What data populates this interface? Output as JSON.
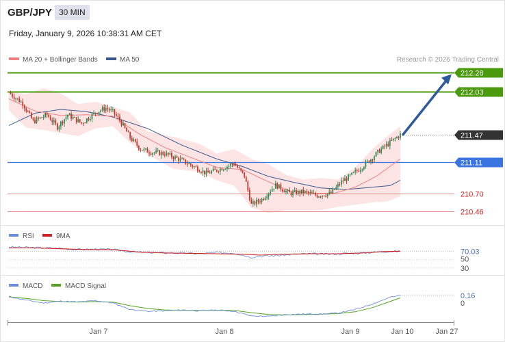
{
  "header": {
    "symbol": "GBP/JPY",
    "timeframe": "30 MIN",
    "datetime": "Friday, January 9, 2026 10:38:31 AM CET"
  },
  "legend": {
    "ma20": "MA 20 + Bollinger Bands",
    "ma50": "MA 50",
    "credit": "Research © 2026 Trading Central"
  },
  "colors": {
    "ma20": "#f08080",
    "ma50": "#3a5a8c",
    "band_fill": "#fde4e4",
    "resistance": "#4a9a0c",
    "pivot": "#3a74e0",
    "support": "#e08a8a",
    "current": "#333333",
    "candle_up": "#2e8b57",
    "candle_down": "#c0392b",
    "arrow": "#2d5a9c",
    "rsi": "#6a8ddc",
    "rsi_ma": "#cc2222",
    "macd": "#6a8ddc",
    "macd_signal": "#55a322"
  },
  "levels": [
    {
      "label": "212.28",
      "kind": "resistance"
    },
    {
      "label": "212.03",
      "kind": "resistance"
    },
    {
      "label": "211.47",
      "kind": "current"
    },
    {
      "label": "211.11",
      "kind": "pivot"
    },
    {
      "label": "210.70",
      "kind": "support"
    },
    {
      "label": "210.46",
      "kind": "support"
    }
  ],
  "rsi_panel": {
    "legend_rsi": "RSI",
    "legend_ma": "9MA",
    "value_label": "70.03",
    "level_50": "50",
    "level_30": "30"
  },
  "macd_panel": {
    "legend_macd": "MACD",
    "legend_signal": "MACD Signal",
    "value_label": "0.16",
    "zero_label": "0"
  },
  "x_axis": {
    "labels": [
      "Jan 7",
      "Jan 8",
      "Jan 9",
      "Jan 10",
      "Jan 27"
    ]
  },
  "chart_data": {
    "type": "candlestick",
    "instrument": "GBP/JPY",
    "interval": "30 MIN",
    "y_range": [
      210.31,
      212.41
    ],
    "price_path": [
      [
        0,
        212.02
      ],
      [
        8,
        211.88
      ],
      [
        14,
        211.64
      ],
      [
        22,
        211.73
      ],
      [
        28,
        211.57
      ],
      [
        34,
        211.73
      ],
      [
        42,
        211.62
      ],
      [
        50,
        211.76
      ],
      [
        56,
        211.82
      ],
      [
        60,
        211.77
      ],
      [
        64,
        211.66
      ],
      [
        70,
        211.43
      ],
      [
        76,
        211.28
      ],
      [
        82,
        211.24
      ],
      [
        90,
        211.22
      ],
      [
        98,
        211.15
      ],
      [
        106,
        211.06
      ],
      [
        114,
        210.96
      ],
      [
        122,
        211.02
      ],
      [
        130,
        211.09
      ],
      [
        136,
        210.93
      ],
      [
        140,
        210.55
      ],
      [
        146,
        210.62
      ],
      [
        154,
        210.81
      ],
      [
        162,
        210.7
      ],
      [
        170,
        210.72
      ],
      [
        178,
        210.67
      ],
      [
        186,
        210.7
      ],
      [
        192,
        210.85
      ],
      [
        198,
        210.94
      ],
      [
        204,
        211.05
      ],
      [
        210,
        211.17
      ],
      [
        214,
        211.26
      ],
      [
        218,
        211.33
      ],
      [
        222,
        211.4
      ],
      [
        226,
        211.47
      ]
    ],
    "ma20": [
      [
        0,
        211.94
      ],
      [
        15,
        211.78
      ],
      [
        30,
        211.72
      ],
      [
        45,
        211.73
      ],
      [
        60,
        211.71
      ],
      [
        75,
        211.48
      ],
      [
        90,
        211.3
      ],
      [
        105,
        211.17
      ],
      [
        120,
        211.04
      ],
      [
        135,
        211.01
      ],
      [
        148,
        210.87
      ],
      [
        162,
        210.73
      ],
      [
        175,
        210.7
      ],
      [
        188,
        210.7
      ],
      [
        200,
        210.78
      ],
      [
        212,
        210.92
      ],
      [
        226,
        211.15
      ]
    ],
    "ma50": [
      [
        0,
        211.59
      ],
      [
        15,
        211.75
      ],
      [
        30,
        211.8
      ],
      [
        45,
        211.77
      ],
      [
        60,
        211.7
      ],
      [
        80,
        211.55
      ],
      [
        100,
        211.33
      ],
      [
        120,
        211.15
      ],
      [
        135,
        211.05
      ],
      [
        150,
        210.92
      ],
      [
        165,
        210.84
      ],
      [
        180,
        210.77
      ],
      [
        195,
        210.75
      ],
      [
        210,
        210.78
      ],
      [
        220,
        210.8
      ],
      [
        226,
        210.87
      ]
    ],
    "bb_upper": [
      [
        0,
        212.04
      ],
      [
        10,
        212.0
      ],
      [
        20,
        212.08
      ],
      [
        30,
        212.01
      ],
      [
        40,
        211.87
      ],
      [
        50,
        211.9
      ],
      [
        60,
        211.83
      ],
      [
        70,
        211.76
      ],
      [
        80,
        211.51
      ],
      [
        95,
        211.44
      ],
      [
        110,
        211.35
      ],
      [
        120,
        211.22
      ],
      [
        130,
        211.28
      ],
      [
        140,
        211.15
      ],
      [
        150,
        211.08
      ],
      [
        160,
        210.94
      ],
      [
        170,
        210.88
      ],
      [
        180,
        210.9
      ],
      [
        190,
        210.88
      ],
      [
        200,
        211.04
      ],
      [
        210,
        211.28
      ],
      [
        218,
        211.44
      ],
      [
        226,
        211.58
      ]
    ],
    "bb_lower": [
      [
        0,
        211.79
      ],
      [
        10,
        211.56
      ],
      [
        20,
        211.53
      ],
      [
        30,
        211.49
      ],
      [
        40,
        211.45
      ],
      [
        50,
        211.55
      ],
      [
        60,
        211.58
      ],
      [
        70,
        211.36
      ],
      [
        80,
        211.21
      ],
      [
        95,
        211.02
      ],
      [
        110,
        210.98
      ],
      [
        120,
        210.87
      ],
      [
        130,
        210.8
      ],
      [
        140,
        210.51
      ],
      [
        150,
        210.44
      ],
      [
        160,
        210.48
      ],
      [
        170,
        210.48
      ],
      [
        180,
        210.48
      ],
      [
        190,
        210.52
      ],
      [
        200,
        210.55
      ],
      [
        210,
        210.58
      ],
      [
        218,
        210.59
      ],
      [
        226,
        210.66
      ]
    ],
    "forecast_target": 212.28,
    "rsi": {
      "value": 70.03,
      "series": [
        [
          0,
          80
        ],
        [
          10,
          79
        ],
        [
          20,
          78
        ],
        [
          30,
          77
        ],
        [
          40,
          74
        ],
        [
          50,
          75
        ],
        [
          60,
          74
        ],
        [
          70,
          69
        ],
        [
          80,
          67
        ],
        [
          90,
          66
        ],
        [
          100,
          66
        ],
        [
          110,
          64
        ],
        [
          120,
          67
        ],
        [
          130,
          66
        ],
        [
          140,
          56
        ],
        [
          145,
          58
        ],
        [
          155,
          60
        ],
        [
          165,
          63
        ],
        [
          175,
          64
        ],
        [
          185,
          63
        ],
        [
          195,
          65
        ],
        [
          205,
          66
        ],
        [
          215,
          69
        ],
        [
          220,
          70
        ],
        [
          226,
          70
        ]
      ],
      "ma": [
        [
          0,
          78
        ],
        [
          15,
          78
        ],
        [
          30,
          76
        ],
        [
          45,
          74
        ],
        [
          60,
          74
        ],
        [
          75,
          68
        ],
        [
          90,
          66
        ],
        [
          105,
          65
        ],
        [
          120,
          64
        ],
        [
          135,
          63
        ],
        [
          145,
          61
        ],
        [
          160,
          63
        ],
        [
          175,
          64
        ],
        [
          190,
          64
        ],
        [
          205,
          66
        ],
        [
          215,
          69
        ],
        [
          226,
          70
        ]
      ]
    },
    "macd": {
      "value": 0.16,
      "range": [
        -0.4,
        0.25
      ],
      "series": [
        [
          0,
          0.14
        ],
        [
          10,
          0.06
        ],
        [
          20,
          0.0
        ],
        [
          30,
          0.04
        ],
        [
          40,
          0.02
        ],
        [
          50,
          0.05
        ],
        [
          60,
          0.0
        ],
        [
          70,
          -0.14
        ],
        [
          80,
          -0.18
        ],
        [
          90,
          -0.17
        ],
        [
          100,
          -0.15
        ],
        [
          110,
          -0.17
        ],
        [
          120,
          -0.15
        ],
        [
          130,
          -0.18
        ],
        [
          140,
          -0.28
        ],
        [
          150,
          -0.29
        ],
        [
          160,
          -0.25
        ],
        [
          170,
          -0.24
        ],
        [
          180,
          -0.24
        ],
        [
          190,
          -0.22
        ],
        [
          200,
          -0.14
        ],
        [
          210,
          -0.02
        ],
        [
          220,
          0.12
        ],
        [
          226,
          0.16
        ]
      ],
      "signal": [
        [
          0,
          0.13
        ],
        [
          10,
          0.1
        ],
        [
          20,
          0.05
        ],
        [
          30,
          0.03
        ],
        [
          40,
          0.02
        ],
        [
          50,
          0.03
        ],
        [
          60,
          0.02
        ],
        [
          70,
          -0.06
        ],
        [
          80,
          -0.12
        ],
        [
          90,
          -0.15
        ],
        [
          100,
          -0.16
        ],
        [
          110,
          -0.16
        ],
        [
          120,
          -0.16
        ],
        [
          130,
          -0.16
        ],
        [
          140,
          -0.21
        ],
        [
          150,
          -0.25
        ],
        [
          160,
          -0.26
        ],
        [
          170,
          -0.25
        ],
        [
          180,
          -0.24
        ],
        [
          190,
          -0.23
        ],
        [
          200,
          -0.19
        ],
        [
          210,
          -0.1
        ],
        [
          220,
          0.03
        ],
        [
          226,
          0.11
        ]
      ]
    }
  }
}
